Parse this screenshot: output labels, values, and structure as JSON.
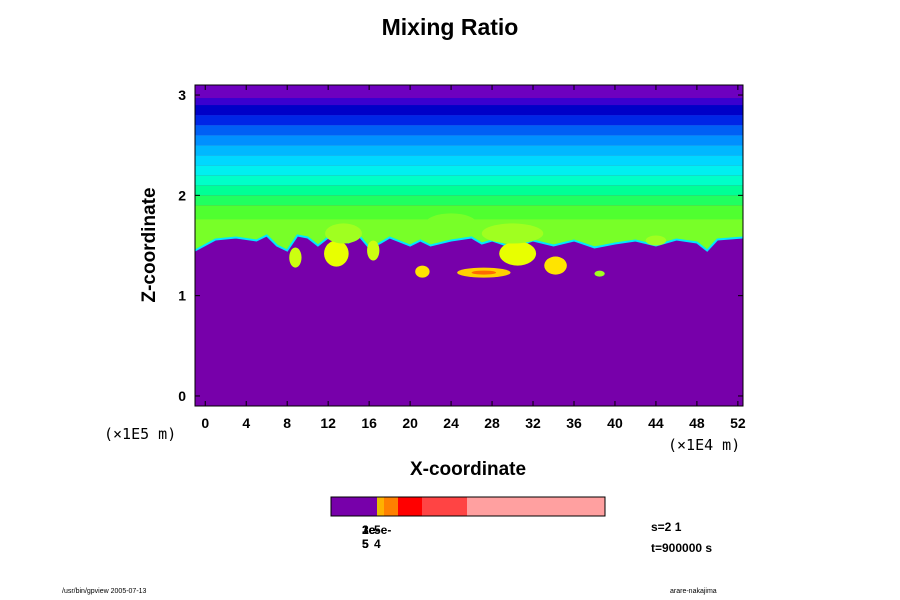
{
  "chart_data": {
    "type": "heatmap",
    "title": "Mixing Ratio",
    "xlabel": "X-coordinate",
    "ylabel": "Z-coordinate",
    "x_unit": "(×1E4 m)",
    "y_unit": "(×1E5 m)",
    "xlim": [
      -1,
      52.5
    ],
    "ylim": [
      -0.1,
      3.1
    ],
    "x_ticks": [
      0,
      4,
      8,
      12,
      16,
      20,
      24,
      28,
      32,
      36,
      40,
      44,
      48,
      52
    ],
    "y_ticks": [
      0,
      1,
      2,
      3
    ],
    "background_color": "#7700AA",
    "bands": [
      {
        "z_top": 3.1,
        "z_bottom": 2.97,
        "color": "#6E00BF"
      },
      {
        "z_top": 2.97,
        "z_bottom": 2.9,
        "color": "#3A00D0"
      },
      {
        "z_top": 2.9,
        "z_bottom": 2.8,
        "color": "#0000C8"
      },
      {
        "z_top": 2.8,
        "z_bottom": 2.7,
        "color": "#0026E6"
      },
      {
        "z_top": 2.7,
        "z_bottom": 2.6,
        "color": "#0060F5"
      },
      {
        "z_top": 2.6,
        "z_bottom": 2.5,
        "color": "#0090FF"
      },
      {
        "z_top": 2.5,
        "z_bottom": 2.4,
        "color": "#00B8FF"
      },
      {
        "z_top": 2.4,
        "z_bottom": 2.3,
        "color": "#00D8FF"
      },
      {
        "z_top": 2.3,
        "z_bottom": 2.2,
        "color": "#00F0F0"
      },
      {
        "z_top": 2.2,
        "z_bottom": 2.1,
        "color": "#00FFC8"
      },
      {
        "z_top": 2.1,
        "z_bottom": 2.0,
        "color": "#00FF96"
      },
      {
        "z_top": 2.0,
        "z_bottom": 1.9,
        "color": "#20FF60"
      },
      {
        "z_top": 1.9,
        "z_bottom": 1.75,
        "color": "#50FF30"
      }
    ],
    "boundary_profile": [
      [
        -1,
        1.45
      ],
      [
        1,
        1.56
      ],
      [
        3,
        1.58
      ],
      [
        5,
        1.55
      ],
      [
        6,
        1.6
      ],
      [
        7,
        1.5
      ],
      [
        8,
        1.45
      ],
      [
        9,
        1.6
      ],
      [
        10,
        1.58
      ],
      [
        11,
        1.5
      ],
      [
        12,
        1.58
      ],
      [
        14,
        1.53
      ],
      [
        15,
        1.6
      ],
      [
        16,
        1.48
      ],
      [
        17,
        1.52
      ],
      [
        18,
        1.58
      ],
      [
        20,
        1.5
      ],
      [
        21,
        1.55
      ],
      [
        22,
        1.5
      ],
      [
        24,
        1.55
      ],
      [
        26,
        1.58
      ],
      [
        27,
        1.52
      ],
      [
        28,
        1.55
      ],
      [
        30,
        1.48
      ],
      [
        32,
        1.55
      ],
      [
        34,
        1.5
      ],
      [
        36,
        1.55
      ],
      [
        38,
        1.48
      ],
      [
        40,
        1.52
      ],
      [
        42,
        1.55
      ],
      [
        44,
        1.5
      ],
      [
        46,
        1.56
      ],
      [
        48,
        1.53
      ],
      [
        49,
        1.45
      ],
      [
        50,
        1.56
      ],
      [
        52.5,
        1.58
      ]
    ],
    "patches": [
      {
        "x": 8.8,
        "z": 1.38,
        "rx": 0.6,
        "rz": 0.1,
        "color": "#CCFF10"
      },
      {
        "x": 12.8,
        "z": 1.42,
        "rx": 1.2,
        "rz": 0.13,
        "color": "#E8FF00"
      },
      {
        "x": 16.4,
        "z": 1.45,
        "rx": 0.6,
        "rz": 0.1,
        "color": "#CCFF10"
      },
      {
        "x": 21.2,
        "z": 1.24,
        "rx": 0.7,
        "rz": 0.06,
        "color": "#FFE400"
      },
      {
        "x": 27.2,
        "z": 1.23,
        "rx": 2.6,
        "rz": 0.05,
        "color": "#FFD000"
      },
      {
        "x": 30.5,
        "z": 1.42,
        "rx": 1.8,
        "rz": 0.12,
        "color": "#E8FF00"
      },
      {
        "x": 34.2,
        "z": 1.3,
        "rx": 1.1,
        "rz": 0.09,
        "color": "#FFE400"
      },
      {
        "x": 38.5,
        "z": 1.22,
        "rx": 0.5,
        "rz": 0.03,
        "color": "#A0FF20"
      },
      {
        "x": 44.0,
        "z": 1.55,
        "rx": 1.0,
        "rz": 0.05,
        "color": "#A0FF20"
      },
      {
        "x": 13.5,
        "z": 1.62,
        "rx": 1.8,
        "rz": 0.1,
        "color": "#A0FF20"
      },
      {
        "x": 30.0,
        "z": 1.62,
        "rx": 3.0,
        "rz": 0.1,
        "color": "#A0FF20"
      },
      {
        "x": 24.0,
        "z": 1.72,
        "rx": 2.5,
        "rz": 0.1,
        "color": "#78FF28"
      }
    ],
    "colorbar": {
      "segments": [
        {
          "color": "#7700AA",
          "w": 46
        },
        {
          "color": "#E5C000",
          "w": 3
        },
        {
          "color": "#FFB000",
          "w": 4
        },
        {
          "color": "#FF8000",
          "w": 14
        },
        {
          "color": "#FF0000",
          "w": 24
        },
        {
          "color": "#FF4444",
          "w": 45
        },
        {
          "color": "#FFA0A0",
          "w": 138
        }
      ],
      "labels": [
        "1e-5",
        "2e-5",
        "3e-5",
        "5e-4"
      ]
    }
  },
  "info": {
    "s": "s=2 1",
    "t": "t=900000 s"
  },
  "footer": {
    "left": "/usr/bin/gpview 2005-07-13",
    "right": "arare-nakajima"
  }
}
